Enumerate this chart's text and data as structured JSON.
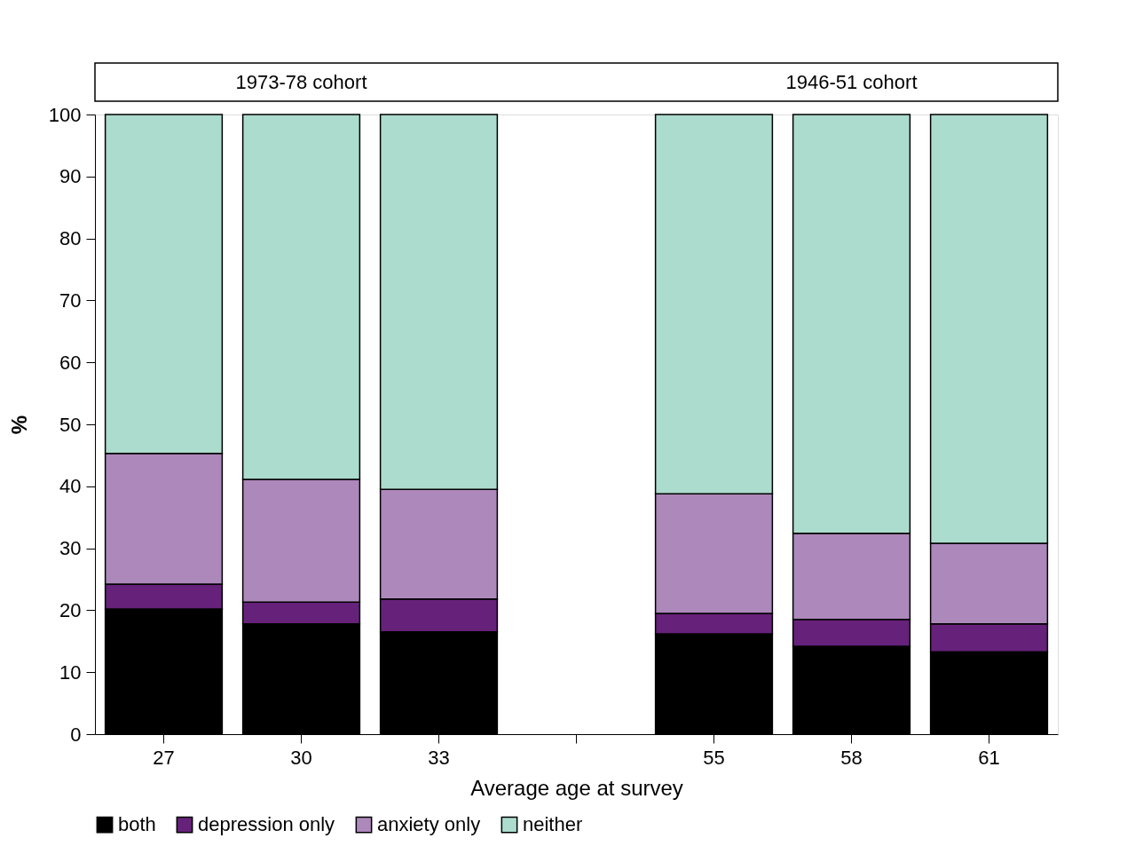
{
  "chart_data": {
    "type": "bar",
    "stacked": true,
    "xlabel": "Average age at survey",
    "ylabel": "%",
    "categories": [
      "27",
      "30",
      "33",
      null,
      "55",
      "58",
      "61"
    ],
    "series": [
      {
        "name": "both",
        "color": "#000000",
        "values": [
          20.2,
          17.8,
          16.5,
          null,
          16.2,
          14.2,
          13.3
        ]
      },
      {
        "name": "depression only",
        "color": "#66217a",
        "values": [
          4.0,
          3.5,
          5.3,
          null,
          3.3,
          4.3,
          4.5
        ]
      },
      {
        "name": "anxiety only",
        "color": "#ad88bb",
        "values": [
          21.1,
          19.8,
          17.7,
          null,
          19.3,
          13.9,
          13.0
        ]
      },
      {
        "name": "neither",
        "color": "#acdccd",
        "values": [
          54.7,
          58.9,
          60.5,
          null,
          61.2,
          67.6,
          69.2
        ]
      }
    ],
    "annotations": [
      "1973-78 cohort",
      "1946-51 cohort"
    ],
    "ylim": [
      0,
      100
    ],
    "yticks": [
      0,
      10,
      20,
      30,
      40,
      50,
      60,
      70,
      80,
      90,
      100
    ],
    "grid": false,
    "legend": "bottom"
  }
}
